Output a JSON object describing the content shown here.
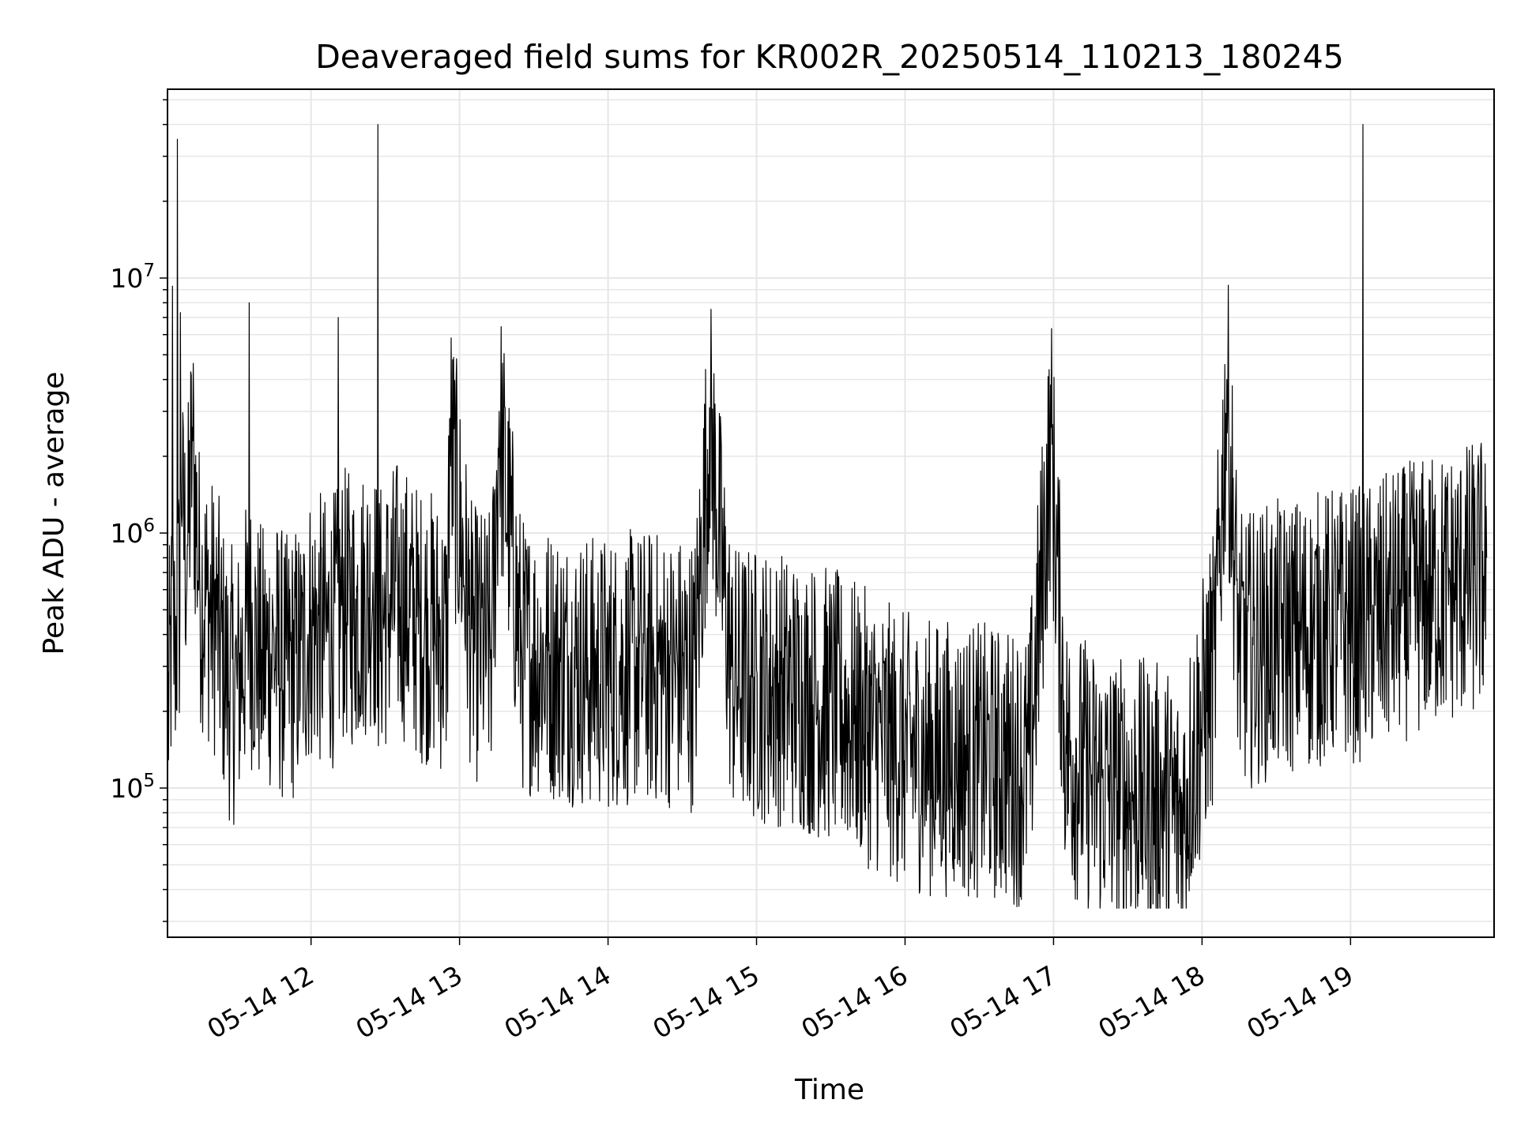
{
  "chart_data": {
    "type": "line",
    "title": "Deaveraged field sums for KR002R_20250514_110213_180245",
    "xlabel": "Time",
    "ylabel": "Peak ADU - average",
    "yscale": "log",
    "ylim": [
      26000,
      55000000
    ],
    "xlim": [
      "2025-05-14 11:02:13",
      "2025-05-14 19:58:00"
    ],
    "grid": true,
    "line_color": "#000000",
    "x_ticks": [
      {
        "value": "2025-05-14 12:00",
        "label": "05-14 12"
      },
      {
        "value": "2025-05-14 13:00",
        "label": "05-14 13"
      },
      {
        "value": "2025-05-14 14:00",
        "label": "05-14 14"
      },
      {
        "value": "2025-05-14 15:00",
        "label": "05-14 15"
      },
      {
        "value": "2025-05-14 16:00",
        "label": "05-14 16"
      },
      {
        "value": "2025-05-14 17:00",
        "label": "05-14 17"
      },
      {
        "value": "2025-05-14 18:00",
        "label": "05-14 18"
      },
      {
        "value": "2025-05-14 19:00",
        "label": "05-14 19"
      }
    ],
    "y_ticks": [
      {
        "value": 100000,
        "base": "10",
        "exp": "5"
      },
      {
        "value": 1000000,
        "base": "10",
        "exp": "6"
      },
      {
        "value": 10000000,
        "base": "10",
        "exp": "7"
      }
    ],
    "series": [
      {
        "x": [
          "2025-05-14 11:02",
          "2025-05-14 11:04",
          "2025-05-14 11:05",
          "2025-05-14 11:06",
          "2025-05-14 11:08",
          "2025-05-14 11:10",
          "2025-05-14 11:12",
          "2025-05-14 11:15",
          "2025-05-14 11:18",
          "2025-05-14 11:22",
          "2025-05-14 11:26",
          "2025-05-14 11:30",
          "2025-05-14 11:35",
          "2025-05-14 11:40",
          "2025-05-14 11:45",
          "2025-05-14 11:50",
          "2025-05-14 11:56",
          "2025-05-14 12:00",
          "2025-05-14 12:06",
          "2025-05-14 12:11",
          "2025-05-14 12:12",
          "2025-05-14 12:18",
          "2025-05-14 12:25",
          "2025-05-14 12:27",
          "2025-05-14 12:35",
          "2025-05-14 12:44",
          "2025-05-14 12:50",
          "2025-05-14 12:55",
          "2025-05-14 12:56",
          "2025-05-14 13:05",
          "2025-05-14 13:13",
          "2025-05-14 13:16",
          "2025-05-14 13:25",
          "2025-05-14 13:35",
          "2025-05-14 13:45",
          "2025-05-14 13:55",
          "2025-05-14 14:05",
          "2025-05-14 14:15",
          "2025-05-14 14:25",
          "2025-05-14 14:35",
          "2025-05-14 14:41",
          "2025-05-14 14:50",
          "2025-05-14 15:00",
          "2025-05-14 15:10",
          "2025-05-14 15:20",
          "2025-05-14 15:30",
          "2025-05-14 15:40",
          "2025-05-14 15:50",
          "2025-05-14 16:00",
          "2025-05-14 16:10",
          "2025-05-14 16:20",
          "2025-05-14 16:30",
          "2025-05-14 16:40",
          "2025-05-14 16:50",
          "2025-05-14 16:59",
          "2025-05-14 17:05",
          "2025-05-14 17:15",
          "2025-05-14 17:25",
          "2025-05-14 17:35",
          "2025-05-14 17:45",
          "2025-05-14 17:52",
          "2025-05-14 17:55",
          "2025-05-14 18:05",
          "2025-05-14 18:10",
          "2025-05-14 18:15",
          "2025-05-14 18:25",
          "2025-05-14 18:35",
          "2025-05-14 18:45",
          "2025-05-14 18:55",
          "2025-05-14 19:05",
          "2025-05-14 19:10",
          "2025-05-14 19:20",
          "2025-05-14 19:30",
          "2025-05-14 19:40",
          "2025-05-14 19:50",
          "2025-05-14 19:55"
        ],
        "values": [
          200000,
          9300000,
          400000,
          35000000,
          1200000,
          900000,
          2600000,
          700000,
          600000,
          500000,
          300000,
          280000,
          8000000,
          350000,
          400000,
          320000,
          380000,
          500000,
          450000,
          7000000,
          600000,
          550000,
          700000,
          40000000,
          650000,
          500000,
          480000,
          420000,
          2800000,
          420000,
          400000,
          3000000,
          380000,
          360000,
          340000,
          320000,
          330000,
          340000,
          330000,
          320000,
          3100000,
          300000,
          290000,
          280000,
          260000,
          240000,
          210000,
          180000,
          160000,
          150000,
          150000,
          145000,
          140000,
          135000,
          2600000,
          160000,
          120000,
          110000,
          105000,
          100000,
          85000,
          130000,
          350000,
          4000000,
          380000,
          420000,
          450000,
          470000,
          500000,
          40000000,
          520000,
          600000,
          650000,
          700000,
          750000,
          800000
        ]
      }
    ]
  }
}
